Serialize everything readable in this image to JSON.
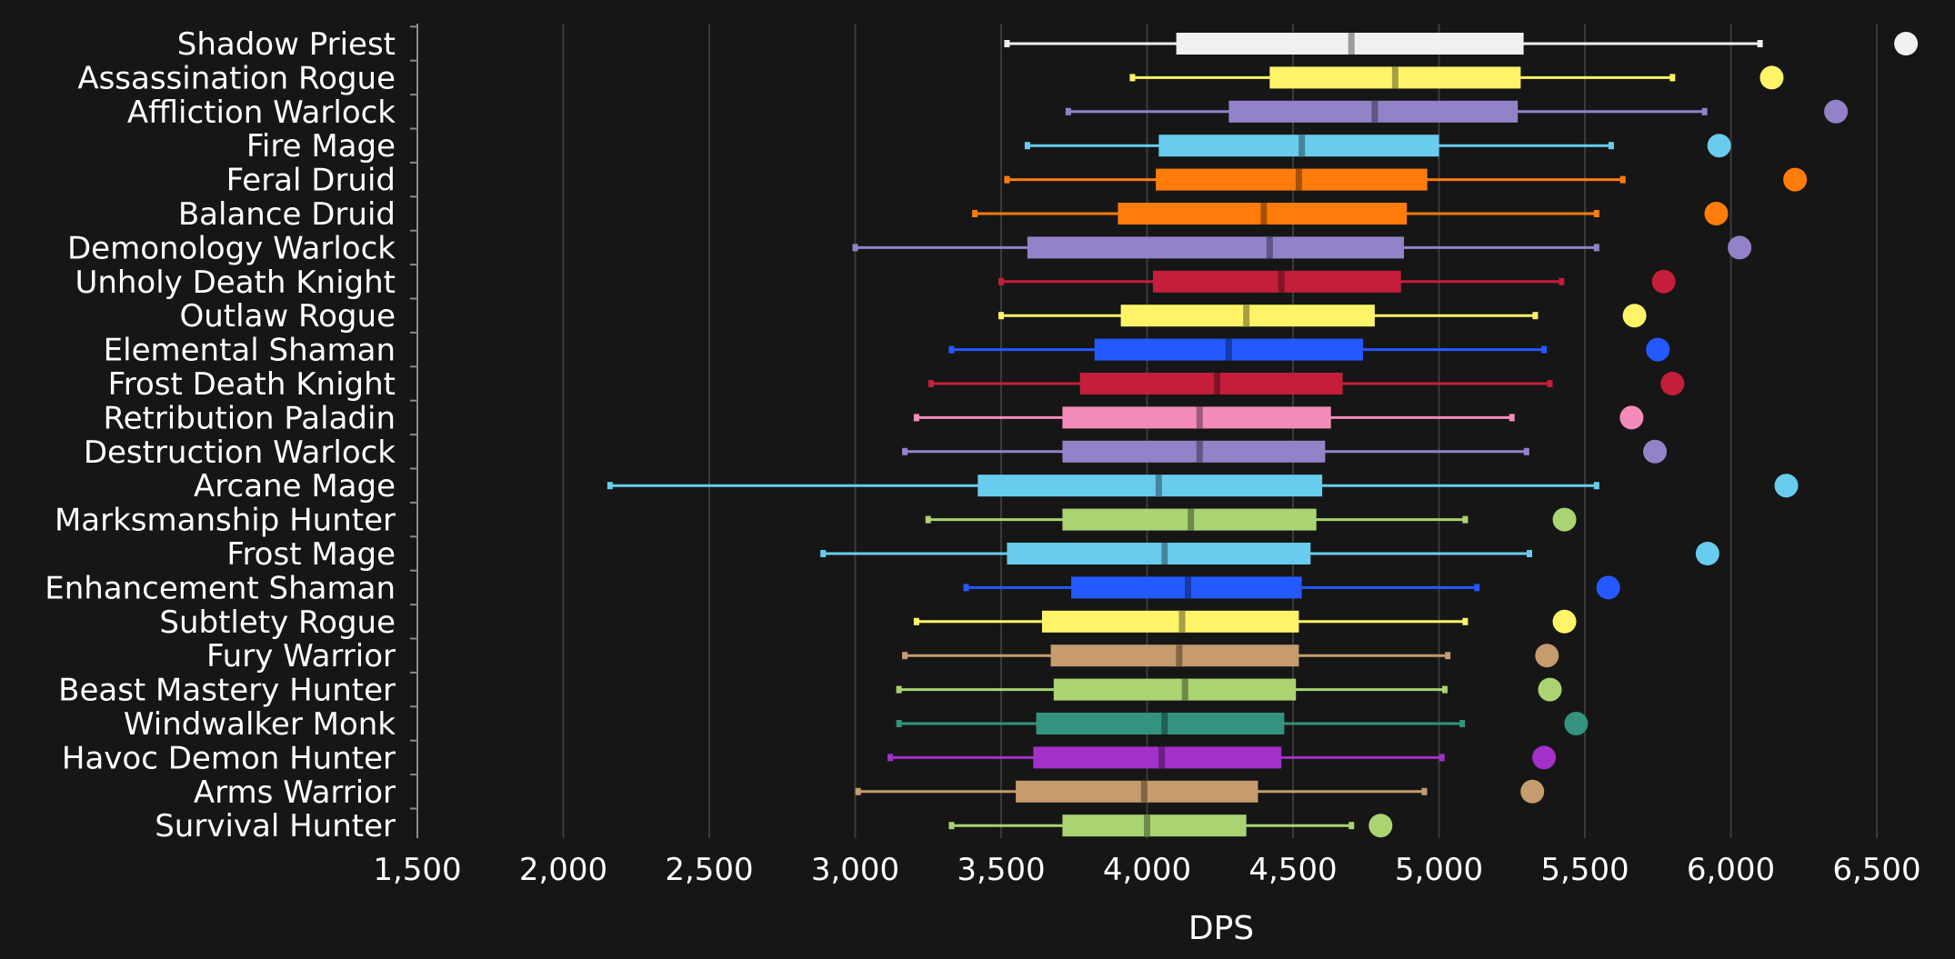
{
  "chart_data": {
    "type": "box",
    "xlabel": "DPS",
    "xlim": [
      1500,
      6500
    ],
    "x_ticks": [
      1500,
      2000,
      2500,
      3000,
      3500,
      4000,
      4500,
      5000,
      5500,
      6000,
      6500
    ],
    "x_tick_labels": [
      "1,500",
      "2,000",
      "2,500",
      "3,000",
      "3,500",
      "4,000",
      "4,500",
      "5,000",
      "5,500",
      "6,000",
      "6,500"
    ],
    "grid": "vertical",
    "series": [
      {
        "name": "Shadow Priest",
        "color": "#f0f0f0",
        "whisker_low": 3520,
        "q1": 4100,
        "median": 4700,
        "q3": 5290,
        "whisker_high": 6100,
        "max": 6600
      },
      {
        "name": "Assassination Rogue",
        "color": "#fff468",
        "whisker_low": 3950,
        "q1": 4420,
        "median": 4850,
        "q3": 5280,
        "whisker_high": 5800,
        "max": 6140
      },
      {
        "name": "Affliction Warlock",
        "color": "#9482c9",
        "whisker_low": 3730,
        "q1": 4280,
        "median": 4780,
        "q3": 5270,
        "whisker_high": 5910,
        "max": 6360
      },
      {
        "name": "Fire Mage",
        "color": "#68ccef",
        "whisker_low": 3590,
        "q1": 4040,
        "median": 4530,
        "q3": 5000,
        "whisker_high": 5590,
        "max": 5960
      },
      {
        "name": "Feral Druid",
        "color": "#ff7c0a",
        "whisker_low": 3520,
        "q1": 4030,
        "median": 4520,
        "q3": 4960,
        "whisker_high": 5630,
        "max": 6220
      },
      {
        "name": "Balance Druid",
        "color": "#ff7c0a",
        "whisker_low": 3410,
        "q1": 3900,
        "median": 4400,
        "q3": 4890,
        "whisker_high": 5540,
        "max": 5950
      },
      {
        "name": "Demonology Warlock",
        "color": "#9482c9",
        "whisker_low": 3000,
        "q1": 3590,
        "median": 4420,
        "q3": 4880,
        "whisker_high": 5540,
        "max": 6030
      },
      {
        "name": "Unholy Death Knight",
        "color": "#c41e3a",
        "whisker_low": 3500,
        "q1": 4020,
        "median": 4460,
        "q3": 4870,
        "whisker_high": 5420,
        "max": 5770
      },
      {
        "name": "Outlaw Rogue",
        "color": "#fff468",
        "whisker_low": 3500,
        "q1": 3910,
        "median": 4340,
        "q3": 4780,
        "whisker_high": 5330,
        "max": 5670
      },
      {
        "name": "Elemental Shaman",
        "color": "#2459ff",
        "whisker_low": 3330,
        "q1": 3820,
        "median": 4280,
        "q3": 4740,
        "whisker_high": 5360,
        "max": 5750
      },
      {
        "name": "Frost Death Knight",
        "color": "#c41e3a",
        "whisker_low": 3260,
        "q1": 3770,
        "median": 4240,
        "q3": 4670,
        "whisker_high": 5380,
        "max": 5800
      },
      {
        "name": "Retribution Paladin",
        "color": "#f48cba",
        "whisker_low": 3210,
        "q1": 3710,
        "median": 4180,
        "q3": 4630,
        "whisker_high": 5250,
        "max": 5660
      },
      {
        "name": "Destruction Warlock",
        "color": "#9482c9",
        "whisker_low": 3170,
        "q1": 3710,
        "median": 4180,
        "q3": 4610,
        "whisker_high": 5300,
        "max": 5740
      },
      {
        "name": "Arcane Mage",
        "color": "#68ccef",
        "whisker_low": 2160,
        "q1": 3420,
        "median": 4040,
        "q3": 4600,
        "whisker_high": 5540,
        "max": 6190
      },
      {
        "name": "Marksmanship Hunter",
        "color": "#aad372",
        "whisker_low": 3250,
        "q1": 3710,
        "median": 4150,
        "q3": 4580,
        "whisker_high": 5090,
        "max": 5430
      },
      {
        "name": "Frost Mage",
        "color": "#68ccef",
        "whisker_low": 2890,
        "q1": 3520,
        "median": 4060,
        "q3": 4560,
        "whisker_high": 5310,
        "max": 5920
      },
      {
        "name": "Enhancement Shaman",
        "color": "#2459ff",
        "whisker_low": 3380,
        "q1": 3740,
        "median": 4140,
        "q3": 4530,
        "whisker_high": 5130,
        "max": 5580
      },
      {
        "name": "Subtlety Rogue",
        "color": "#fff468",
        "whisker_low": 3210,
        "q1": 3640,
        "median": 4120,
        "q3": 4520,
        "whisker_high": 5090,
        "max": 5430
      },
      {
        "name": "Fury Warrior",
        "color": "#c69b6d",
        "whisker_low": 3170,
        "q1": 3670,
        "median": 4110,
        "q3": 4520,
        "whisker_high": 5030,
        "max": 5370
      },
      {
        "name": "Beast Mastery Hunter",
        "color": "#aad372",
        "whisker_low": 3150,
        "q1": 3680,
        "median": 4130,
        "q3": 4510,
        "whisker_high": 5020,
        "max": 5380
      },
      {
        "name": "Windwalker Monk",
        "color": "#33937f",
        "whisker_low": 3150,
        "q1": 3620,
        "median": 4060,
        "q3": 4470,
        "whisker_high": 5080,
        "max": 5470
      },
      {
        "name": "Havoc Demon Hunter",
        "color": "#a330c9",
        "whisker_low": 3120,
        "q1": 3610,
        "median": 4050,
        "q3": 4460,
        "whisker_high": 5010,
        "max": 5360
      },
      {
        "name": "Arms Warrior",
        "color": "#c69b6d",
        "whisker_low": 3010,
        "q1": 3550,
        "median": 3990,
        "q3": 4380,
        "whisker_high": 4950,
        "max": 5320
      },
      {
        "name": "Survival Hunter",
        "color": "#aad372",
        "whisker_low": 3330,
        "q1": 3710,
        "median": 4000,
        "q3": 4340,
        "whisker_high": 4700,
        "max": 4800
      }
    ]
  }
}
